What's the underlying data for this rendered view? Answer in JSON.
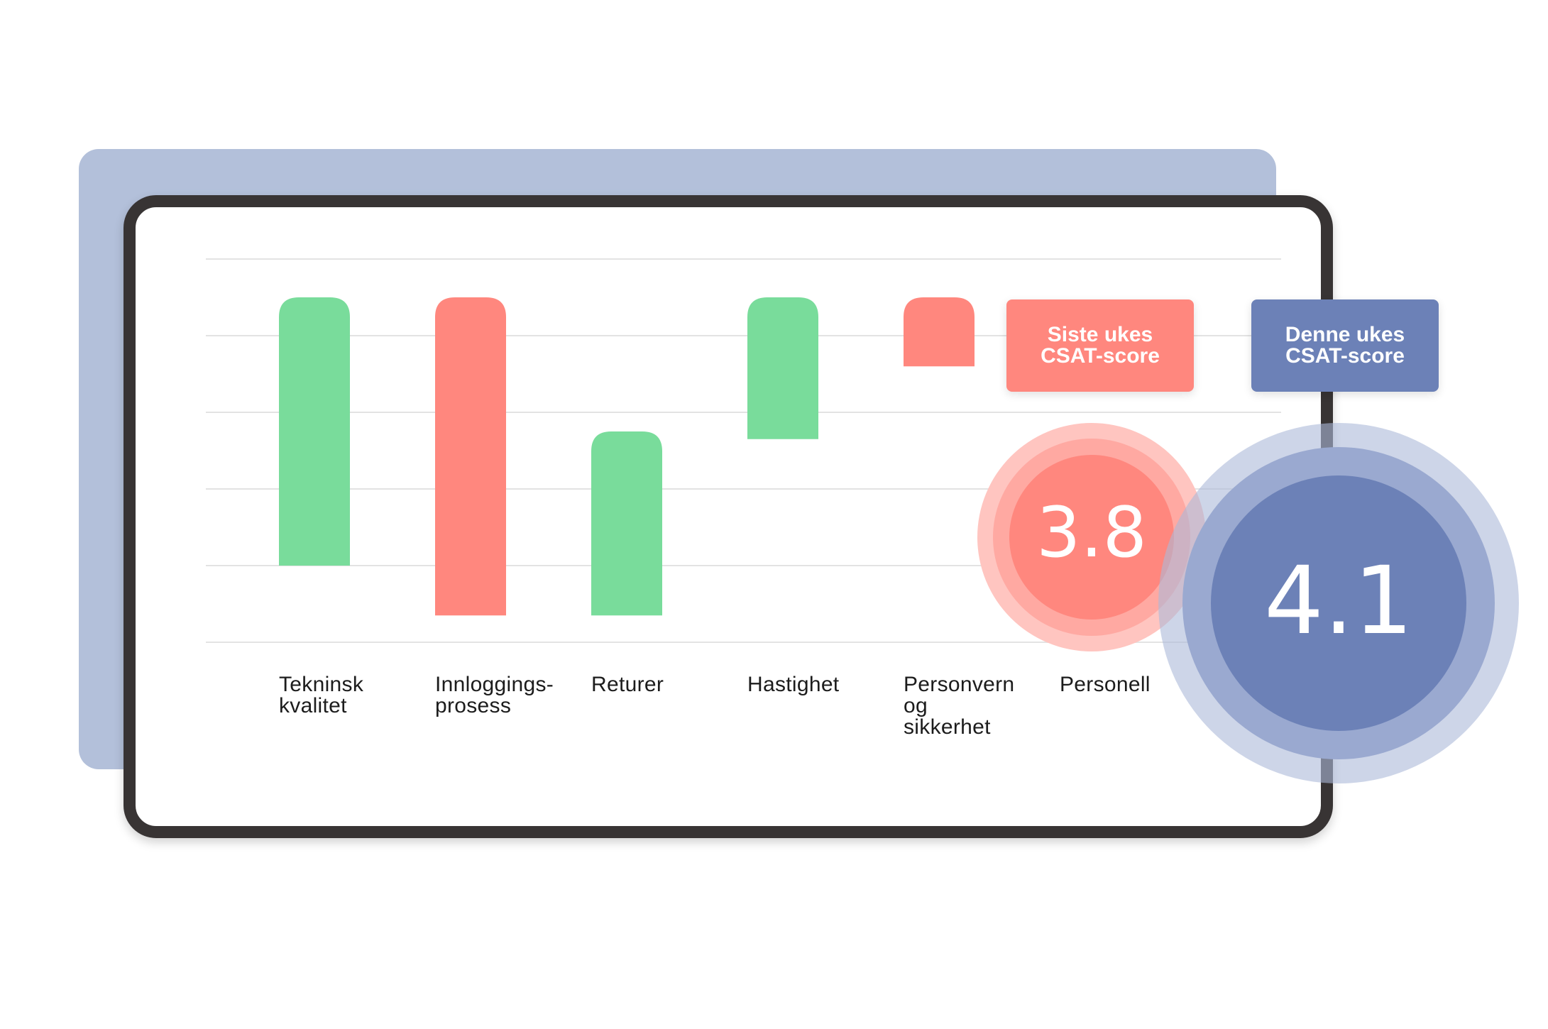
{
  "colors": {
    "positive": "#79dc9b",
    "negative": "#ff877e",
    "current": "#6c81b7",
    "back_card": "#b3c0da",
    "gridline": "#e3e3e3"
  },
  "chart_data": {
    "type": "bar",
    "subtype": "floating",
    "categories": [
      "Tekninsk\nkvalitet",
      "Innloggings-\nprosess",
      "Returer",
      "Hastighet",
      "Personvern\nog\nsikkerhet",
      "Personell"
    ],
    "ranges": [
      {
        "low": 1.0,
        "high": 4.5,
        "sign": "positive"
      },
      {
        "low": 0.35,
        "high": 4.5,
        "sign": "negative"
      },
      {
        "low": 0.35,
        "high": 2.75,
        "sign": "positive"
      },
      {
        "low": 2.65,
        "high": 4.5,
        "sign": "positive"
      },
      {
        "low": 3.6,
        "high": 4.5,
        "sign": "negative"
      },
      null
    ],
    "ylim": [
      0,
      5
    ],
    "gridlines": 6,
    "grid": true
  },
  "scores": {
    "previous": {
      "label": "Siste ukes\nCSAT-score",
      "value": "3.8"
    },
    "current": {
      "label": "Denne ukes\nCSAT-score",
      "value": "4.1"
    }
  }
}
